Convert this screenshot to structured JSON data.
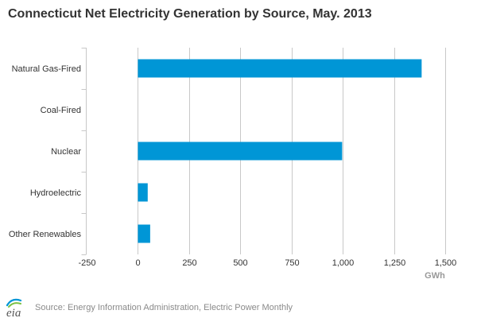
{
  "chart_data": {
    "type": "bar",
    "orientation": "horizontal",
    "title": "Connecticut Net Electricity Generation by Source, May. 2013",
    "categories": [
      "Natural Gas-Fired",
      "Coal-Fired",
      "Nuclear",
      "Hydroelectric",
      "Other Renewables"
    ],
    "values": [
      1385,
      0,
      997,
      48,
      60
    ],
    "xlabel": "GWh",
    "ylabel": "",
    "xlim": [
      -250,
      1500
    ],
    "xticks": [
      -250,
      0,
      250,
      500,
      750,
      1000,
      1250,
      1500
    ],
    "xtick_labels": [
      "-250",
      "0",
      "250",
      "500",
      "750",
      "1,000",
      "1,250",
      "1,500"
    ],
    "grid": true,
    "bar_color": "#0096d6"
  },
  "footer": {
    "logo_text": "eia",
    "source": "Source: Energy Information Administration, Electric Power Monthly"
  }
}
